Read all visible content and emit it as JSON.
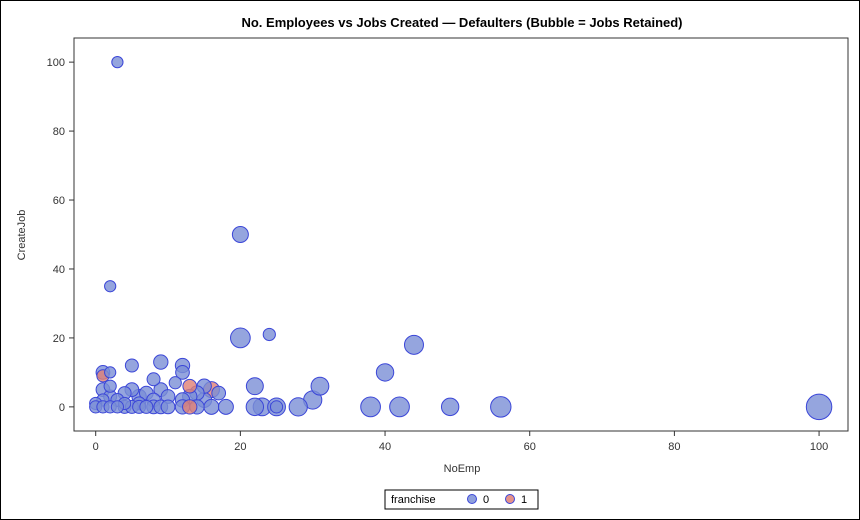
{
  "chart_data": {
    "type": "scatter",
    "title": "No. Employees vs Jobs Created — Defaulters (Bubble = Jobs Retained)",
    "xlabel": "NoEmp",
    "ylabel": "CreateJob",
    "xlim": [
      -3,
      104
    ],
    "ylim": [
      -7,
      107
    ],
    "xticks": [
      0,
      20,
      40,
      60,
      80,
      100
    ],
    "yticks": [
      0,
      20,
      40,
      60,
      80,
      100
    ],
    "grid": false,
    "legend": {
      "title": "franchise",
      "placement": "bottom-center"
    },
    "series": [
      {
        "name": "0",
        "color": "#7b8fd6",
        "points": [
          {
            "x": 3,
            "y": 100,
            "size": 2
          },
          {
            "x": 20,
            "y": 50,
            "size": 9
          },
          {
            "x": 2,
            "y": 35,
            "size": 2
          },
          {
            "x": 24,
            "y": 21,
            "size": 3
          },
          {
            "x": 20,
            "y": 20,
            "size": 18
          },
          {
            "x": 44,
            "y": 18,
            "size": 16
          },
          {
            "x": 9,
            "y": 13,
            "size": 6
          },
          {
            "x": 5,
            "y": 12,
            "size": 4
          },
          {
            "x": 12,
            "y": 12,
            "size": 6
          },
          {
            "x": 40,
            "y": 10,
            "size": 12
          },
          {
            "x": 1,
            "y": 10,
            "size": 5
          },
          {
            "x": 2,
            "y": 10,
            "size": 2
          },
          {
            "x": 12,
            "y": 10,
            "size": 5
          },
          {
            "x": 8,
            "y": 8,
            "size": 4
          },
          {
            "x": 11,
            "y": 7,
            "size": 3
          },
          {
            "x": 2,
            "y": 6,
            "size": 3
          },
          {
            "x": 22,
            "y": 6,
            "size": 11
          },
          {
            "x": 31,
            "y": 6,
            "size": 13
          },
          {
            "x": 15,
            "y": 6,
            "size": 6
          },
          {
            "x": 1,
            "y": 5,
            "size": 5
          },
          {
            "x": 5,
            "y": 5,
            "size": 5
          },
          {
            "x": 9,
            "y": 5,
            "size": 5
          },
          {
            "x": 4,
            "y": 4,
            "size": 4
          },
          {
            "x": 7,
            "y": 4,
            "size": 5
          },
          {
            "x": 14,
            "y": 4,
            "size": 6
          },
          {
            "x": 17,
            "y": 4,
            "size": 5
          },
          {
            "x": 2,
            "y": 3,
            "size": 4
          },
          {
            "x": 6,
            "y": 3,
            "size": 6
          },
          {
            "x": 10,
            "y": 3,
            "size": 5
          },
          {
            "x": 13,
            "y": 3,
            "size": 6
          },
          {
            "x": 1,
            "y": 2,
            "size": 3
          },
          {
            "x": 3,
            "y": 2,
            "size": 4
          },
          {
            "x": 8,
            "y": 2,
            "size": 5
          },
          {
            "x": 12,
            "y": 2,
            "size": 6
          },
          {
            "x": 15,
            "y": 2,
            "size": 7
          },
          {
            "x": 30,
            "y": 2,
            "size": 14
          },
          {
            "x": 0,
            "y": 1,
            "size": 3
          },
          {
            "x": 4,
            "y": 1,
            "size": 3
          },
          {
            "x": 6,
            "y": 1,
            "size": 4
          },
          {
            "x": 0,
            "y": 0,
            "size": 3
          },
          {
            "x": 1,
            "y": 0,
            "size": 3
          },
          {
            "x": 2,
            "y": 0,
            "size": 3
          },
          {
            "x": 3,
            "y": 0,
            "size": 3
          },
          {
            "x": 4,
            "y": 0,
            "size": 4
          },
          {
            "x": 5,
            "y": 0,
            "size": 4
          },
          {
            "x": 6,
            "y": 0,
            "size": 4
          },
          {
            "x": 7,
            "y": 0,
            "size": 4
          },
          {
            "x": 8,
            "y": 0,
            "size": 5
          },
          {
            "x": 9,
            "y": 0,
            "size": 5
          },
          {
            "x": 10,
            "y": 0,
            "size": 5
          },
          {
            "x": 12,
            "y": 0,
            "size": 6
          },
          {
            "x": 14,
            "y": 0,
            "size": 6
          },
          {
            "x": 16,
            "y": 0,
            "size": 7
          },
          {
            "x": 18,
            "y": 0,
            "size": 7
          },
          {
            "x": 22,
            "y": 0,
            "size": 12
          },
          {
            "x": 23,
            "y": 0,
            "size": 13
          },
          {
            "x": 25,
            "y": 0,
            "size": 3
          },
          {
            "x": 25,
            "y": 0,
            "size": 13
          },
          {
            "x": 28,
            "y": 0,
            "size": 14
          },
          {
            "x": 38,
            "y": 0,
            "size": 18
          },
          {
            "x": 42,
            "y": 0,
            "size": 18
          },
          {
            "x": 49,
            "y": 0,
            "size": 12
          },
          {
            "x": 56,
            "y": 0,
            "size": 20
          },
          {
            "x": 100,
            "y": 0,
            "size": 38
          }
        ]
      },
      {
        "name": "1",
        "color": "#e07f74",
        "points": [
          {
            "x": 1,
            "y": 9,
            "size": 3
          },
          {
            "x": 13,
            "y": 6,
            "size": 5
          },
          {
            "x": 16,
            "y": 5,
            "size": 9
          },
          {
            "x": 13,
            "y": 0,
            "size": 6
          }
        ]
      }
    ]
  }
}
